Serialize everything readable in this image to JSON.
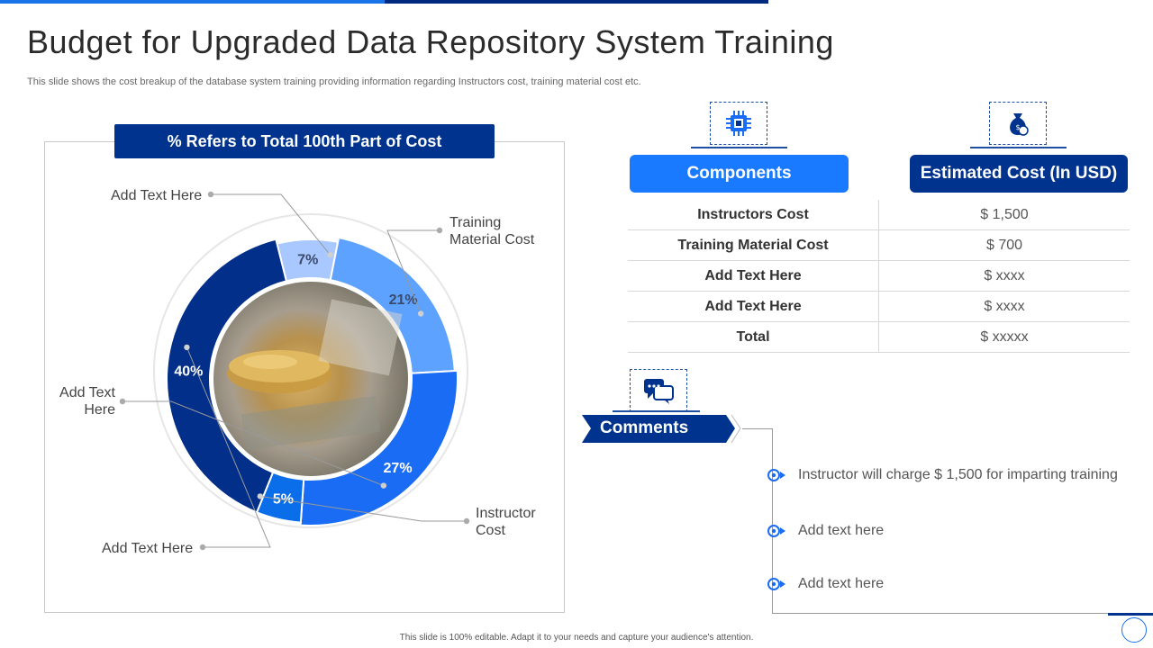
{
  "title": "Budget for Upgraded Data Repository System Training",
  "subtitle": "This slide shows the cost breakup of the database system training providing information regarding Instructors cost, training material cost etc.",
  "chart_header": "% Refers to Total 100th Part of Cost",
  "chart_data": {
    "type": "pie",
    "title": "% Refers to Total 100th Part of Cost",
    "slices": [
      {
        "label": "Add Text Here",
        "value": 7,
        "display": "7%",
        "color": "#a9c8ff"
      },
      {
        "label": "Training Material Cost",
        "value": 21,
        "display": "21%",
        "color": "#5ea2ff"
      },
      {
        "label": "Instructor Cost",
        "value": 27,
        "display": "27%",
        "color": "#1a6cf5"
      },
      {
        "label": "Add Text Here",
        "value": 5,
        "display": "5%",
        "color": "#0a6dea"
      },
      {
        "label": "Add Text Here",
        "value": 40,
        "display": "40%",
        "color": "#012f8a"
      }
    ]
  },
  "callouts": [
    {
      "text": "Add Text Here"
    },
    {
      "text": "Training Material Cost"
    },
    {
      "text": "Add Text Here"
    },
    {
      "text": "Instructor Cost"
    },
    {
      "text": "Add Text Here"
    }
  ],
  "table": {
    "col1_header": "Components",
    "col2_header": "Estimated Cost (In USD)",
    "rows": [
      {
        "component": "Instructors Cost",
        "cost": "$ 1,500"
      },
      {
        "component": "Training Material Cost",
        "cost": "$ 700"
      },
      {
        "component": "Add Text Here",
        "cost": "$ xxxx"
      },
      {
        "component": "Add Text Here",
        "cost": "$ xxxx"
      },
      {
        "component": "Total",
        "cost": "$ xxxxx"
      }
    ]
  },
  "comments": {
    "label": "Comments",
    "items": [
      "Instructor  will charge $ 1,500 for imparting training",
      "Add text here",
      "Add text here"
    ]
  },
  "footer": "This slide is 100% editable.  Adapt it to your needs and capture your audience's attention.",
  "icons": [
    "chip-icon",
    "money-bag-icon",
    "chat-bubbles-icon",
    "target-bullet-icon"
  ],
  "colors": {
    "navy": "#00338d",
    "blue": "#1a7aff",
    "accent": "#1a73e8"
  }
}
